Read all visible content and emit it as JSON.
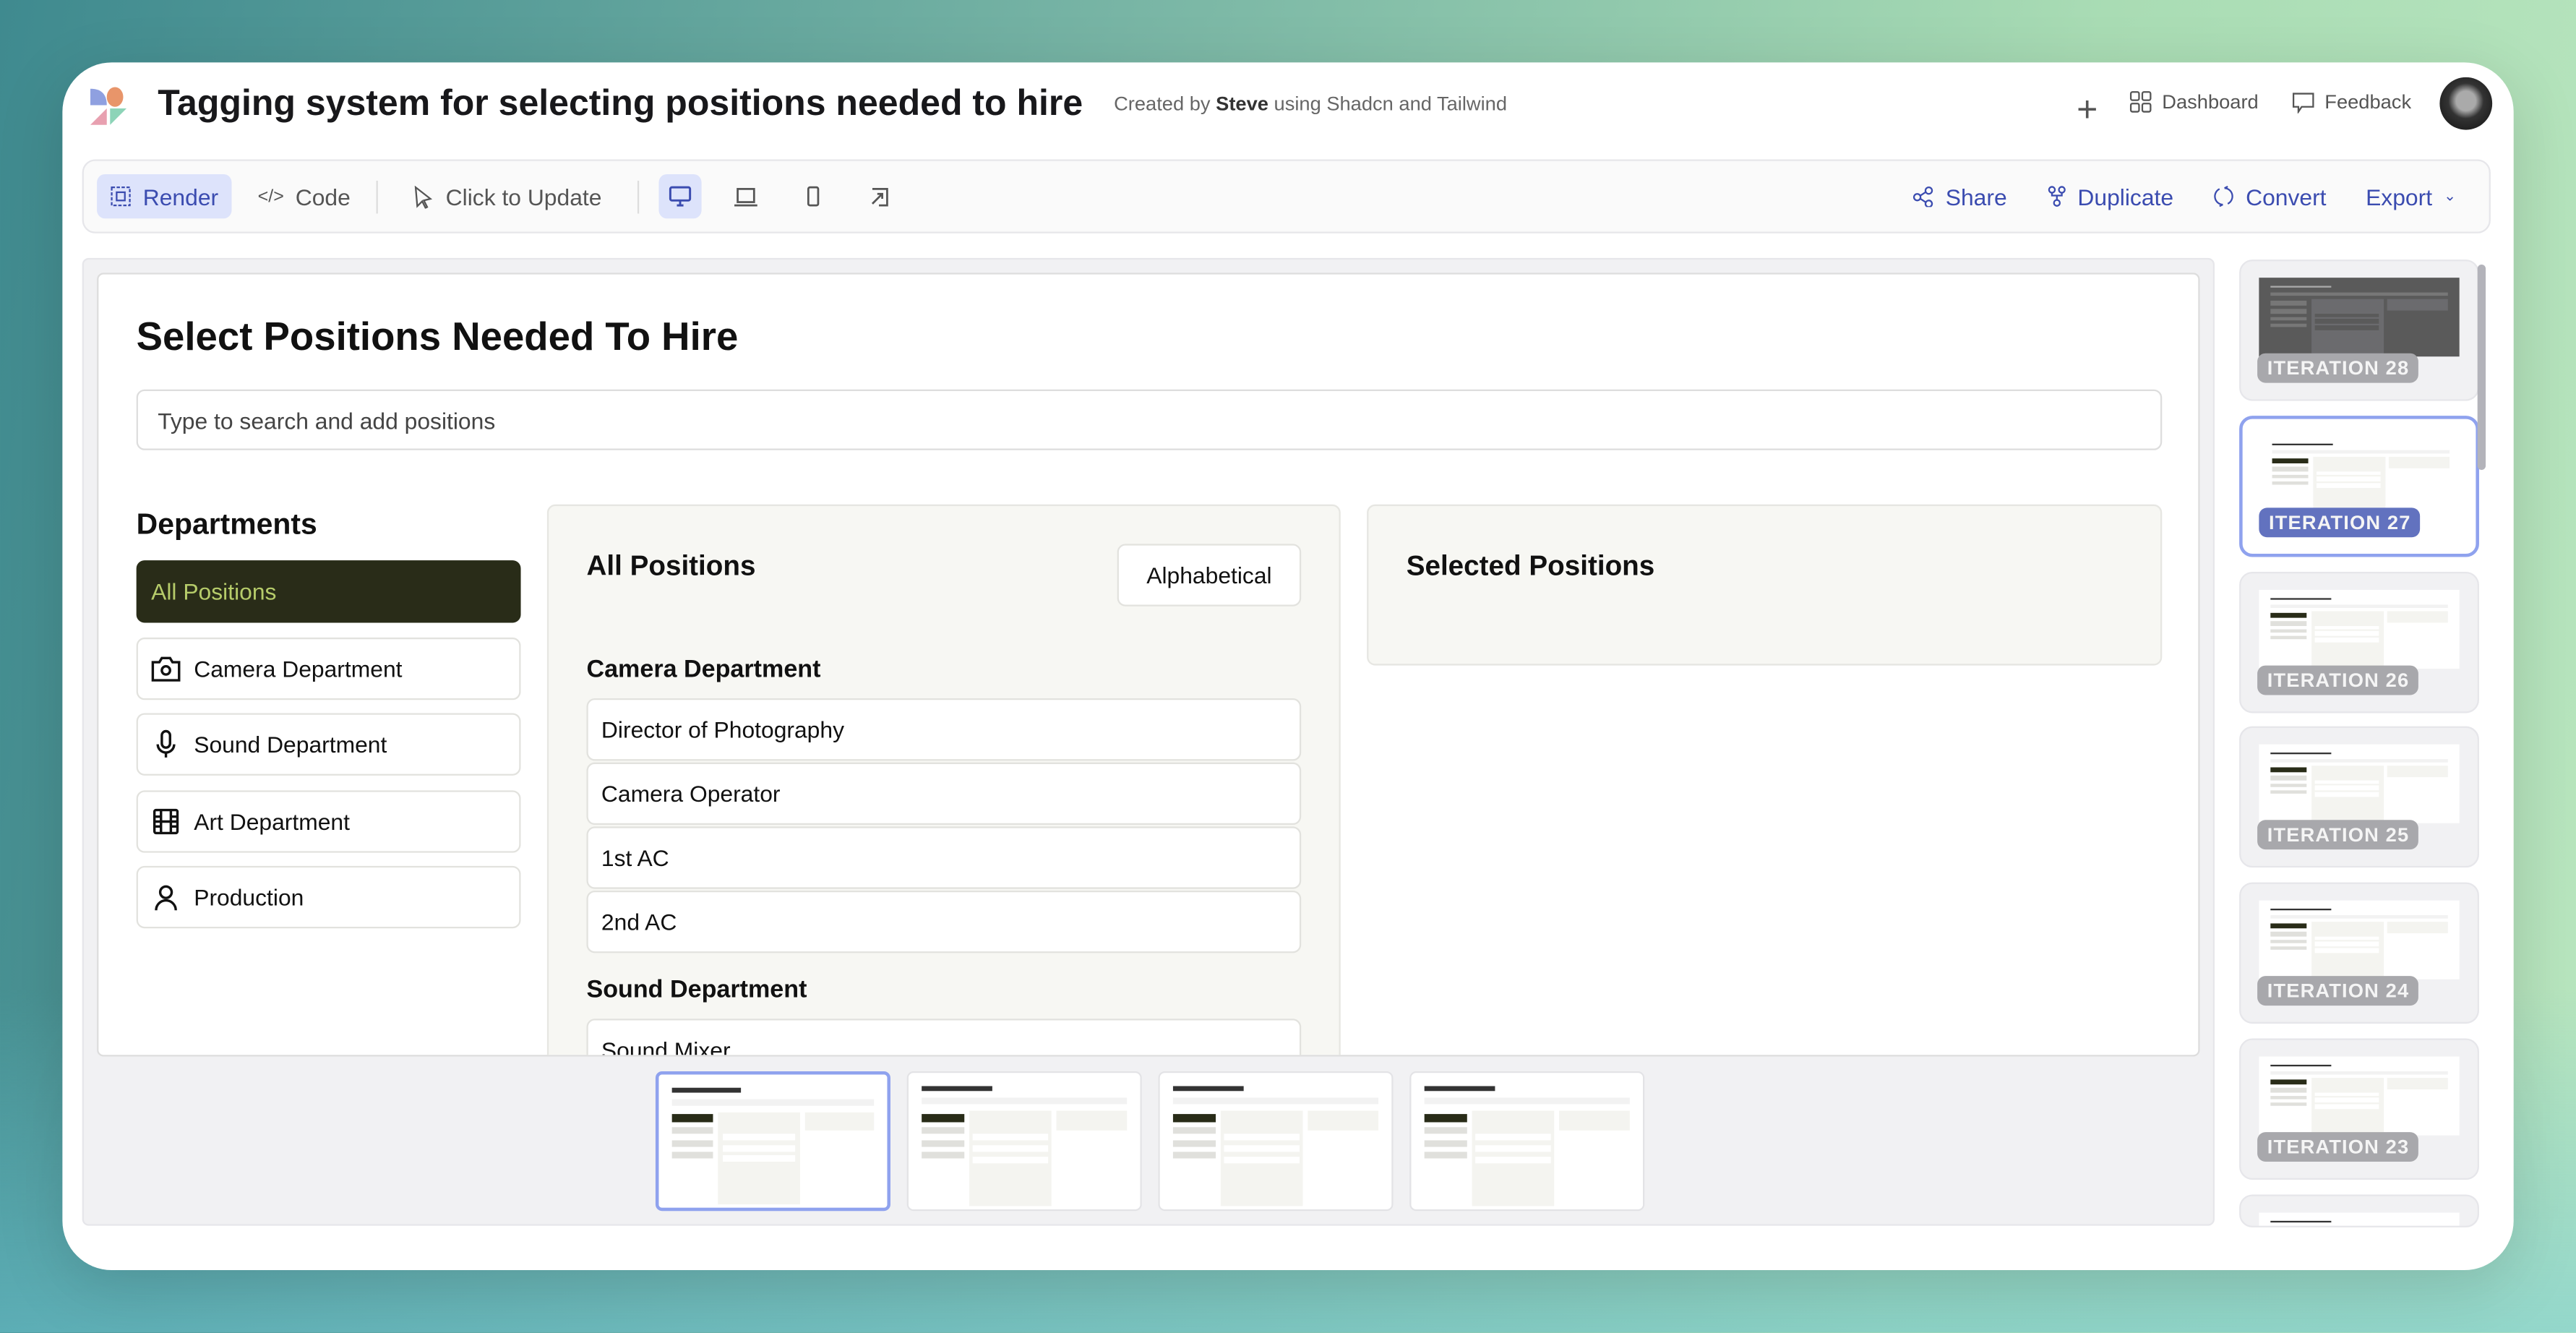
{
  "header": {
    "title": "Tagging system for selecting positions needed to hire",
    "created_by_prefix": "Created by",
    "author": "Steve",
    "created_by_suffix": "using Shadcn and Tailwind",
    "dashboard": "Dashboard",
    "feedback": "Feedback"
  },
  "toolbar": {
    "render": "Render",
    "code": "Code",
    "click_to_update": "Click to Update",
    "share": "Share",
    "duplicate": "Duplicate",
    "convert": "Convert",
    "export": "Export"
  },
  "app": {
    "heading": "Select Positions Needed To Hire",
    "search_placeholder": "Type to search and add positions",
    "departments_heading": "Departments",
    "departments": [
      {
        "label": "All Positions",
        "icon": "none",
        "active": true
      },
      {
        "label": "Camera Department",
        "icon": "camera-icon"
      },
      {
        "label": "Sound Department",
        "icon": "mic-icon"
      },
      {
        "label": "Art Department",
        "icon": "film-icon"
      },
      {
        "label": "Production",
        "icon": "user-icon"
      }
    ],
    "all_positions_title": "All Positions",
    "sort_label": "Alphabetical",
    "sections": [
      {
        "name": "Camera Department",
        "positions": [
          "Director of Photography",
          "Camera Operator",
          "1st AC",
          "2nd AC"
        ]
      },
      {
        "name": "Sound Department",
        "positions": [
          "Sound Mixer"
        ]
      }
    ],
    "selected_title": "Selected Positions"
  },
  "iterations": [
    "ITERATION 28",
    "ITERATION 27",
    "ITERATION 26",
    "ITERATION 25",
    "ITERATION 24",
    "ITERATION 23"
  ],
  "selected_iteration": "ITERATION 27",
  "colors": {
    "accent": "#3b4cb0",
    "active_dept_bg": "#292c18",
    "active_dept_text": "#b6cc6a",
    "badge_selected": "#6272bf"
  }
}
